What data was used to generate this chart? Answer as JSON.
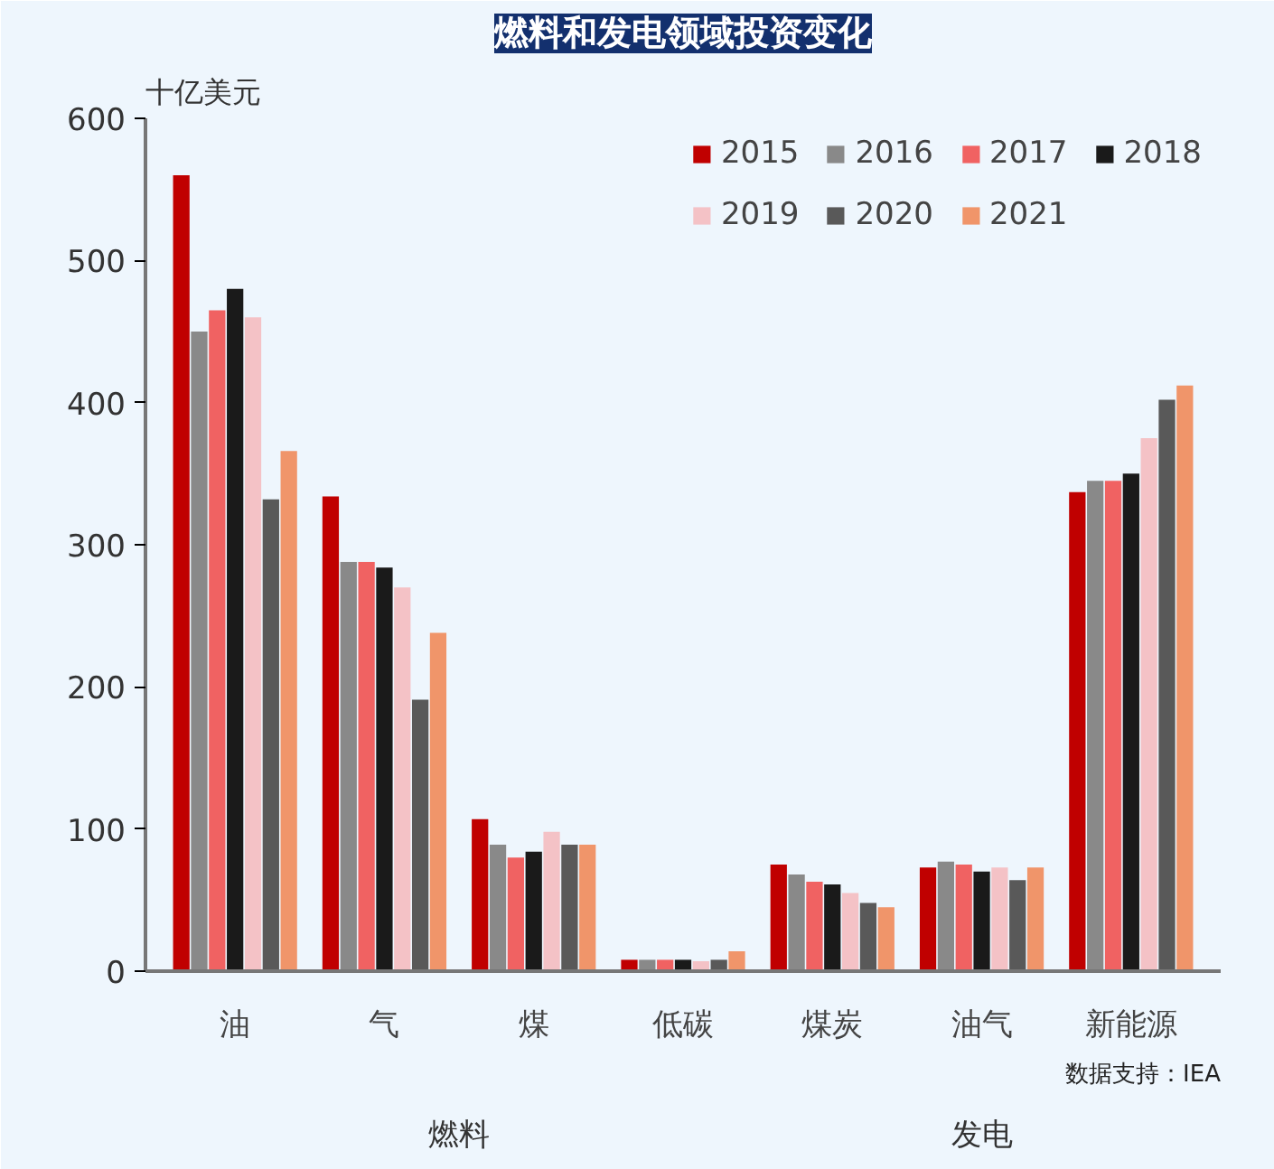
{
  "chart_data": {
    "type": "bar",
    "title": "燃料和发电领域投资变化",
    "ylabel": "十亿美元",
    "categories": [
      "油",
      "气",
      "煤",
      "低碳",
      "煤炭",
      "油气",
      "新能源"
    ],
    "series": [
      {
        "name": "2015",
        "color": "#c00000",
        "values": [
          560,
          334,
          107,
          8,
          75,
          73,
          337
        ]
      },
      {
        "name": "2016",
        "color": "#898989",
        "values": [
          450,
          288,
          89,
          8,
          68,
          77,
          345
        ]
      },
      {
        "name": "2017",
        "color": "#f06262",
        "values": [
          465,
          288,
          80,
          8,
          63,
          75,
          345
        ]
      },
      {
        "name": "2018",
        "color": "#1a1a1a",
        "values": [
          480,
          284,
          84,
          8,
          61,
          70,
          350
        ]
      },
      {
        "name": "2019",
        "color": "#f4c2c6",
        "values": [
          460,
          270,
          98,
          7,
          55,
          73,
          375
        ]
      },
      {
        "name": "2020",
        "color": "#595959",
        "values": [
          332,
          191,
          89,
          8,
          48,
          64,
          402
        ]
      },
      {
        "name": "2021",
        "color": "#f0956a",
        "values": [
          366,
          238,
          89,
          14,
          45,
          73,
          412
        ]
      }
    ],
    "ylim": [
      0,
      600
    ],
    "yticks": [
      0,
      100,
      200,
      300,
      400,
      500,
      600
    ],
    "grid": false,
    "legend": "top right",
    "annotations": [
      "燃料",
      "发电",
      "数据支持：IEA"
    ]
  }
}
